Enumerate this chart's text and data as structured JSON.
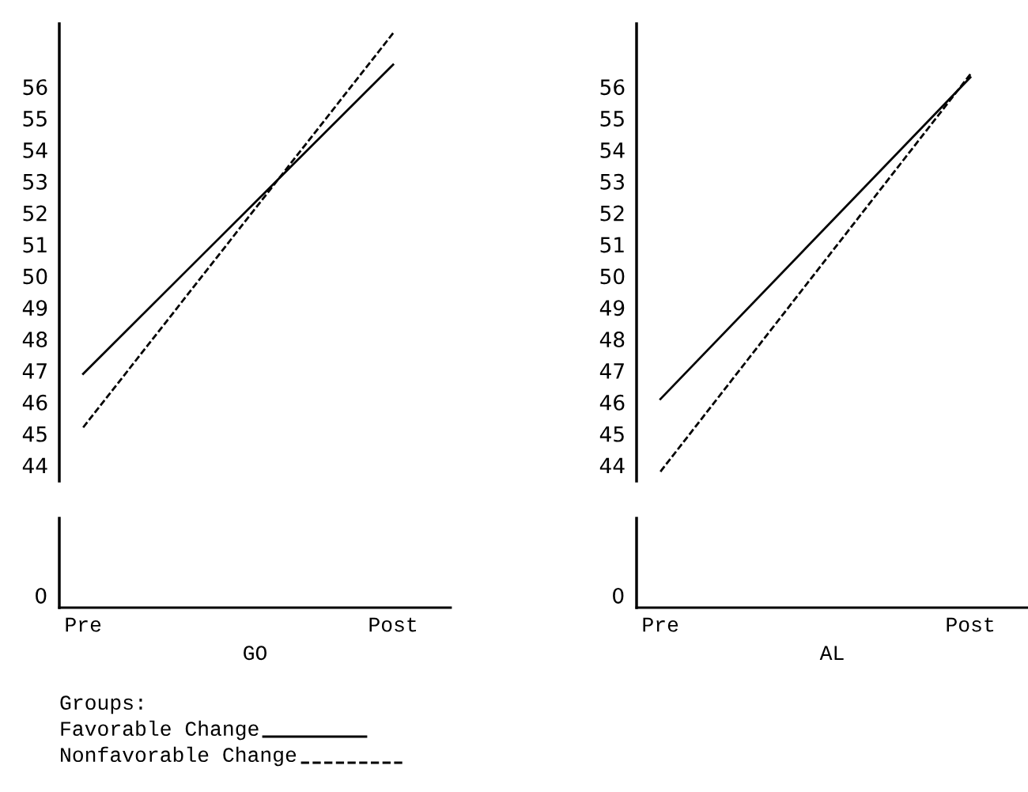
{
  "chart_data": [
    {
      "type": "line",
      "categories": [
        "Pre",
        "Post"
      ],
      "xlabel": "GO",
      "ylim": [
        43.5,
        58
      ],
      "yticks": [
        44,
        45,
        46,
        47,
        48,
        49,
        50,
        51,
        52,
        53,
        54,
        55,
        56
      ],
      "legend": "bottom left",
      "legend_title": "Groups:",
      "annotations": [
        "0"
      ],
      "series": [
        {
          "name": "Favorable Change",
          "color": "#000000",
          "line_style": "solid",
          "values": [
            46.9,
            56.7
          ]
        },
        {
          "name": "Nonfavorable Change",
          "color": "#000000",
          "line_style": "dashed",
          "values": [
            45.2,
            57.7
          ]
        }
      ]
    },
    {
      "type": "line",
      "categories": [
        "Pre",
        "Post"
      ],
      "xlabel": "AL",
      "ylim": [
        43.5,
        58
      ],
      "yticks": [
        44,
        45,
        46,
        47,
        48,
        49,
        50,
        51,
        52,
        53,
        54,
        55,
        56
      ],
      "annotations": [
        "0"
      ],
      "series": [
        {
          "color": "#000000",
          "line_style": "solid",
          "values": [
            46.1,
            56.3
          ]
        },
        {
          "color": "#000000",
          "line_style": "dashed",
          "values": [
            43.8,
            56.4
          ]
        }
      ]
    }
  ]
}
